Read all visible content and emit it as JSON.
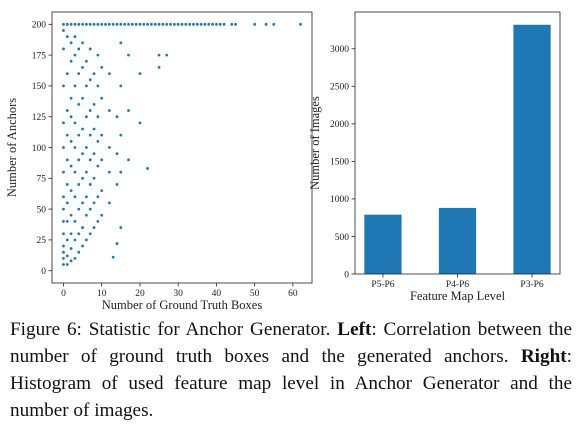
{
  "chart_data": [
    {
      "type": "scatter",
      "xlabel": "Number of Ground Truth Boxes",
      "ylabel": "Number of Anchors",
      "color": "#1f77b4",
      "xlim": [
        -3,
        65
      ],
      "ylim": [
        -10,
        210
      ],
      "xticks": [
        0,
        10,
        20,
        30,
        40,
        50,
        60
      ],
      "yticks": [
        0,
        25,
        50,
        75,
        100,
        125,
        150,
        175,
        200
      ],
      "x": [
        0,
        1,
        2,
        3,
        4,
        5,
        6,
        7,
        8,
        9,
        10,
        11,
        12,
        13,
        14,
        15,
        16,
        17,
        18,
        19,
        20,
        21,
        22,
        23,
        24,
        25,
        26,
        27,
        28,
        29,
        30,
        31,
        32,
        33,
        34,
        35,
        36,
        37,
        38,
        39,
        40,
        41,
        42,
        44,
        45,
        50,
        53,
        55,
        62,
        0,
        0,
        0,
        0,
        0,
        0,
        0,
        0,
        0,
        0,
        0,
        0,
        0,
        0,
        1,
        1,
        1,
        1,
        1,
        1,
        1,
        1,
        1,
        1,
        1,
        2,
        2,
        2,
        2,
        2,
        2,
        2,
        2,
        2,
        2,
        2,
        3,
        3,
        3,
        3,
        3,
        3,
        3,
        3,
        3,
        3,
        4,
        4,
        4,
        4,
        4,
        4,
        4,
        4,
        4,
        5,
        5,
        5,
        5,
        5,
        5,
        5,
        5,
        5,
        6,
        6,
        6,
        6,
        6,
        6,
        6,
        6,
        7,
        7,
        7,
        7,
        7,
        7,
        7,
        7,
        8,
        8,
        8,
        8,
        8,
        8,
        8,
        9,
        9,
        9,
        9,
        9,
        9,
        9,
        10,
        10,
        10,
        10,
        10,
        10,
        12,
        12,
        12,
        12,
        12,
        13,
        14,
        14,
        14,
        14,
        15,
        15,
        15,
        15,
        15,
        17,
        17,
        17,
        20,
        20,
        22,
        25,
        25,
        27
      ],
      "values": [
        200,
        200,
        200,
        200,
        200,
        200,
        200,
        200,
        200,
        200,
        200,
        200,
        200,
        200,
        200,
        200,
        200,
        200,
        200,
        200,
        200,
        200,
        200,
        200,
        200,
        200,
        200,
        200,
        200,
        200,
        200,
        200,
        200,
        200,
        200,
        200,
        200,
        200,
        200,
        200,
        200,
        200,
        200,
        200,
        200,
        200,
        200,
        200,
        200,
        5,
        10,
        15,
        20,
        30,
        40,
        50,
        60,
        80,
        100,
        120,
        150,
        180,
        195,
        5,
        12,
        25,
        40,
        55,
        70,
        90,
        110,
        130,
        160,
        190,
        8,
        18,
        30,
        45,
        65,
        85,
        105,
        125,
        140,
        170,
        185,
        10,
        25,
        40,
        60,
        80,
        100,
        120,
        150,
        175,
        190,
        15,
        30,
        50,
        70,
        90,
        110,
        135,
        160,
        180,
        20,
        35,
        55,
        75,
        95,
        115,
        140,
        165,
        185,
        25,
        45,
        60,
        80,
        100,
        125,
        150,
        170,
        30,
        50,
        70,
        90,
        110,
        130,
        155,
        180,
        35,
        55,
        75,
        95,
        115,
        135,
        160,
        40,
        60,
        85,
        105,
        125,
        150,
        175,
        45,
        65,
        90,
        110,
        140,
        165,
        55,
        80,
        100,
        130,
        160,
        11,
        22,
        70,
        95,
        125,
        35,
        80,
        110,
        150,
        185,
        90,
        130,
        175,
        120,
        160,
        83,
        165,
        175,
        175
      ]
    },
    {
      "type": "bar",
      "xlabel": "Feature Map Level",
      "ylabel": "Number of Images",
      "color": "#1f77b4",
      "categories": [
        "P5-P6",
        "P4-P6",
        "P3-P6"
      ],
      "values": [
        790,
        880,
        3320
      ],
      "ylim": [
        0,
        3490
      ],
      "yticks": [
        0,
        500,
        1000,
        1500,
        2000,
        2500,
        3000
      ]
    }
  ],
  "caption": {
    "intro": "Figure 6: Statistic for Anchor Generator.",
    "left_label": "Left",
    "left_text": ": Correlation between the number of ground truth boxes and the generated anchors.",
    "right_label": "Right",
    "right_text": ": Histogram of used feature map level in Anchor Generator and the number of images."
  }
}
